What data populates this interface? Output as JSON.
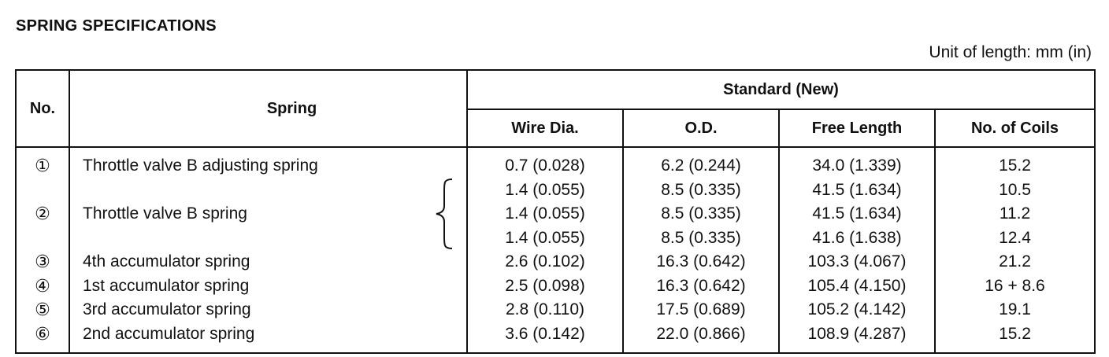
{
  "title": "SPRING SPECIFICATIONS",
  "unit_note": "Unit of length: mm (in)",
  "headers": {
    "no": "No.",
    "spring": "Spring",
    "standard": "Standard (New)",
    "wire_dia": "Wire Dia.",
    "od": "O.D.",
    "free_length": "Free Length",
    "coils": "No. of Coils"
  },
  "rows": [
    {
      "no": "①",
      "spring": "Throttle valve B adjusting spring",
      "wire_dia": "0.7 (0.028)",
      "od": "6.2 (0.244)",
      "free_length": "34.0 (1.339)",
      "coils": "15.2"
    },
    {
      "no": "",
      "spring": "",
      "wire_dia": "1.4 (0.055)",
      "od": "8.5 (0.335)",
      "free_length": "41.5 (1.634)",
      "coils": "10.5"
    },
    {
      "no": "②",
      "spring": "Throttle valve B spring",
      "wire_dia": "1.4 (0.055)",
      "od": "8.5 (0.335)",
      "free_length": "41.5 (1.634)",
      "coils": "11.2"
    },
    {
      "no": "",
      "spring": "",
      "wire_dia": "1.4 (0.055)",
      "od": "8.5 (0.335)",
      "free_length": "41.6 (1.638)",
      "coils": "12.4"
    },
    {
      "no": "③",
      "spring": "4th accumulator spring",
      "wire_dia": "2.6 (0.102)",
      "od": "16.3 (0.642)",
      "free_length": "103.3 (4.067)",
      "coils": "21.2"
    },
    {
      "no": "④",
      "spring": "1st accumulator spring",
      "wire_dia": "2.5 (0.098)",
      "od": "16.3 (0.642)",
      "free_length": "105.4 (4.150)",
      "coils": "16 + 8.6"
    },
    {
      "no": "⑤",
      "spring": "3rd accumulator spring",
      "wire_dia": "2.8 (0.110)",
      "od": "17.5 (0.689)",
      "free_length": "105.2 (4.142)",
      "coils": "19.1"
    },
    {
      "no": "⑥",
      "spring": "2nd accumulator spring",
      "wire_dia": "3.6 (0.142)",
      "od": "22.0 (0.866)",
      "free_length": "108.9 (4.287)",
      "coils": "15.2"
    }
  ]
}
